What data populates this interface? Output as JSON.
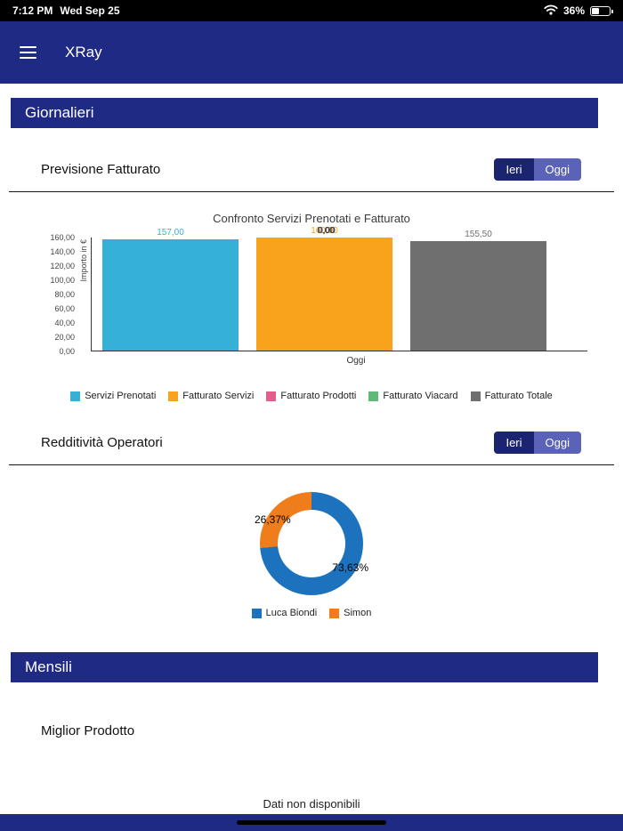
{
  "status_bar": {
    "time": "7:12 PM",
    "date": "Wed Sep 25",
    "battery_percent": "36%"
  },
  "navbar": {
    "title": "XRay"
  },
  "giornalieri": {
    "title": "Giornalieri"
  },
  "previsione": {
    "title": "Previsione Fatturato",
    "toggle": {
      "ieri": "Ieri",
      "oggi": "Oggi"
    }
  },
  "redditivita": {
    "title": "Redditività Operatori",
    "toggle": {
      "ieri": "Ieri",
      "oggi": "Oggi"
    }
  },
  "mensili": {
    "title": "Mensili",
    "miglior_prodotto": "Miglior Prodotto",
    "no_data": "Dati non disponibili"
  },
  "colors": {
    "navy": "#1f2a85",
    "toggle_ieri": "#1a2470",
    "toggle_oggi": "#5a63b8"
  },
  "chart_data": [
    {
      "type": "bar",
      "title": "Confronto Servizi Prenotati e Fatturato",
      "xlabel": "Oggi",
      "ylabel": "Importo in €",
      "ylim": [
        0,
        160
      ],
      "yticks": [
        "160,00",
        "140,00",
        "120,00",
        "100,00",
        "80,00",
        "60,00",
        "40,00",
        "20,00",
        "0,00"
      ],
      "grid": false,
      "legend_position": "bottom",
      "categories": [
        "Oggi"
      ],
      "series": [
        {
          "name": "Servizi Prenotati",
          "value": 157.0,
          "label": "157,00",
          "color": "#35b1d8"
        },
        {
          "name": "Fatturato Servizi",
          "value": 160.0,
          "label": "160,00",
          "color": "#f9a21b"
        },
        {
          "name": "Fatturato Prodotti",
          "value": 0,
          "label": "0,00",
          "color": "#e45d8a"
        },
        {
          "name": "Fatturato Viacard",
          "value": 0,
          "label": "0,00",
          "color": "#61b979"
        },
        {
          "name": "Fatturato Totale",
          "value": 155.5,
          "label": "155,50",
          "color": "#6f6f6f"
        }
      ]
    },
    {
      "type": "donut",
      "legend_position": "bottom",
      "slices": [
        {
          "name": "Luca Biondi",
          "value": 73.63,
          "label": "73,63%",
          "color": "#1d72bd"
        },
        {
          "name": "Simon",
          "value": 26.37,
          "label": "26,37%",
          "color": "#ef7d1b"
        }
      ]
    }
  ]
}
